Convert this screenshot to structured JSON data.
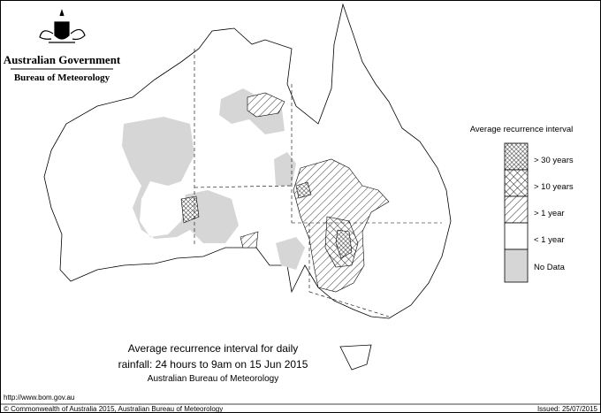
{
  "header": {
    "title": "Australian Government",
    "subtitle": "Bureau of Meteorology"
  },
  "legend": {
    "title": "Average recurrence interval",
    "items": [
      {
        "label": "> 30 years"
      },
      {
        "label": "> 10 years"
      },
      {
        "label": "> 1 year"
      },
      {
        "label": "< 1 year"
      },
      {
        "label": "No Data"
      }
    ]
  },
  "caption": {
    "line1": "Average recurrence interval for daily",
    "line2": "rainfall: 24 hours to 9am on 15 Jun 2015",
    "line3": "Australian Bureau of Meteorology"
  },
  "footer": {
    "url": "http://www.bom.gov.au",
    "copyright": "© Commonwealth of Australia 2015, Australian Bureau of Meteorology",
    "issued": "Issued: 25/07/2015"
  }
}
